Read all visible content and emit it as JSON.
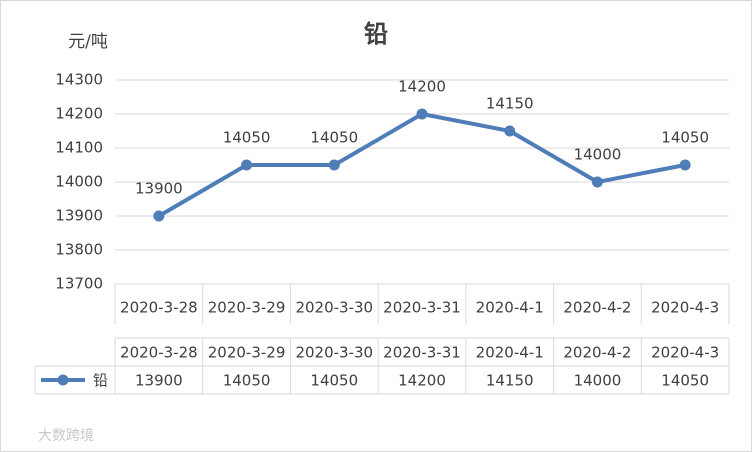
{
  "chart_data": {
    "type": "line",
    "title": "铅",
    "y_label": "元/吨",
    "categories": [
      "2020-3-28",
      "2020-3-29",
      "2020-3-30",
      "2020-3-31",
      "2020-4-1",
      "2020-4-2",
      "2020-4-3"
    ],
    "series": [
      {
        "name": "铅",
        "color": "#4f7db8",
        "values": [
          13900,
          14050,
          14050,
          14200,
          14150,
          14000,
          14050
        ]
      }
    ],
    "ylim": [
      13700,
      14300
    ],
    "yticks": [
      13700,
      13800,
      13900,
      14000,
      14100,
      14200,
      14300
    ],
    "grid": true,
    "data_table": true
  },
  "watermark": "大数跨境"
}
